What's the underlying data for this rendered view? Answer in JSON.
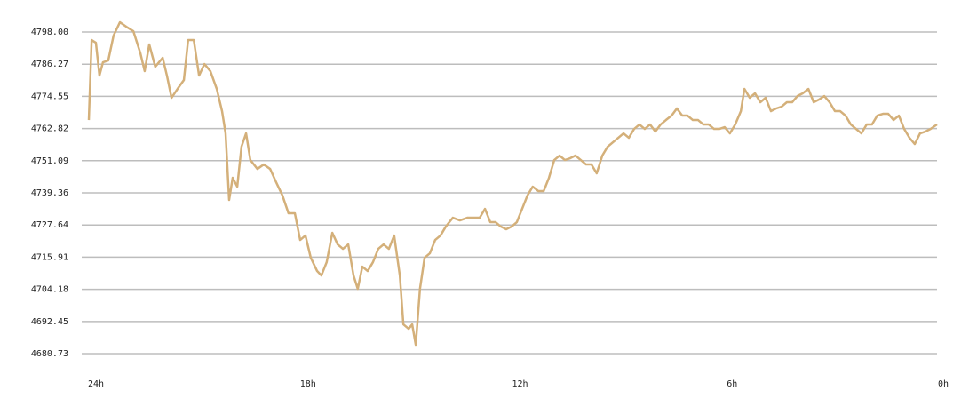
{
  "chart_data": {
    "type": "line",
    "x": [
      24,
      23.92,
      23.8,
      23.7,
      23.6,
      23.45,
      23.3,
      23.12,
      22.94,
      22.74,
      22.54,
      22.42,
      22.29,
      22.12,
      21.91,
      21.79,
      21.66,
      21.49,
      21.31,
      21.19,
      21.03,
      20.88,
      20.73,
      20.56,
      20.38,
      20.23,
      20.13,
      20.03,
      19.93,
      19.8,
      19.68,
      19.55,
      19.43,
      19.23,
      19.05,
      18.87,
      18.7,
      18.52,
      18.35,
      18.17,
      18.02,
      17.87,
      17.72,
      17.54,
      17.42,
      17.27,
      17.11,
      16.96,
      16.81,
      16.66,
      16.51,
      16.39,
      16.26,
      16.11,
      15.96,
      15.81,
      15.66,
      15.51,
      15.36,
      15.2,
      15.1,
      14.95,
      14.85,
      14.75,
      14.63,
      14.5,
      14.35,
      14.2,
      14.05,
      13.9,
      13.7,
      13.5,
      13.29,
      13.09,
      12.94,
      12.79,
      12.64,
      12.49,
      12.34,
      12.19,
      12.04,
      11.89,
      11.74,
      11.59,
      11.44,
      11.28,
      11.13,
      10.98,
      10.83,
      10.68,
      10.53,
      10.38,
      10.23,
      10.08,
      9.93,
      9.78,
      9.63,
      9.47,
      9.32,
      9.17,
      9.02,
      8.87,
      8.72,
      8.57,
      8.42,
      8.27,
      8.12,
      7.97,
      7.82,
      7.67,
      7.51,
      7.36,
      7.21,
      7.06,
      6.91,
      6.76,
      6.61,
      6.46,
      6.31,
      6.16,
      6.01,
      5.86,
      5.71,
      5.55,
      5.45,
      5.3,
      5.15,
      5,
      4.85,
      4.7,
      4.55,
      4.4,
      4.25,
      4.1,
      3.95,
      3.8,
      3.64,
      3.49,
      3.34,
      3.19,
      3.04,
      2.89,
      2.74,
      2.59,
      2.44,
      2.29,
      2.14,
      1.99,
      1.84,
      1.69,
      1.53,
      1.38,
      1.23,
      1.08,
      0.93,
      0.78,
      0.63,
      0.48,
      0.33,
      0.18,
      0
    ],
    "series": [
      {
        "color": "#d4b07a",
        "values": [
          4765.92,
          4795.08,
          4794.11,
          4782.12,
          4786.98,
          4787.63,
          4796.7,
          4801.56,
          4799.94,
          4798.32,
          4790.22,
          4783.74,
          4793.46,
          4785.36,
          4788.6,
          4782.12,
          4774.02,
          4777.26,
          4780.5,
          4795.08,
          4795.08,
          4782.12,
          4786.34,
          4783.74,
          4777.26,
          4769.16,
          4761.06,
          4736.76,
          4744.86,
          4741.62,
          4756.2,
          4761.06,
          4751.34,
          4748.1,
          4749.72,
          4748.1,
          4743.24,
          4738.38,
          4731.9,
          4731.9,
          4722.18,
          4723.8,
          4715.7,
          4710.84,
          4709.22,
          4714.08,
          4724.78,
          4720.56,
          4718.94,
          4720.56,
          4709.22,
          4704.36,
          4712.46,
          4710.84,
          4714.08,
          4718.94,
          4720.56,
          4718.94,
          4723.8,
          4709.22,
          4691.4,
          4689.78,
          4691.4,
          4683.95,
          4704.36,
          4715.7,
          4717.32,
          4722.18,
          4723.8,
          4727.04,
          4730.28,
          4729.31,
          4730.28,
          4730.28,
          4730.28,
          4733.52,
          4728.66,
          4728.66,
          4727.04,
          4726.07,
          4727.04,
          4728.66,
          4733.52,
          4738.38,
          4741.62,
          4740,
          4740,
          4744.86,
          4751.34,
          4752.96,
          4751.34,
          4751.99,
          4752.96,
          4751.34,
          4749.72,
          4749.72,
          4746.48,
          4752.96,
          4756.2,
          4757.82,
          4759.44,
          4761.06,
          4759.44,
          4762.68,
          4764.3,
          4762.68,
          4764.3,
          4761.71,
          4764.3,
          4765.92,
          4767.54,
          4770.14,
          4767.54,
          4767.54,
          4765.92,
          4765.92,
          4764.3,
          4764.3,
          4762.68,
          4762.68,
          4763.33,
          4761.06,
          4764.3,
          4769.16,
          4777.26,
          4774.02,
          4775.64,
          4772.4,
          4774.02,
          4769.16,
          4770.14,
          4770.78,
          4772.4,
          4772.4,
          4774.67,
          4775.64,
          4777.26,
          4772.4,
          4773.38,
          4774.67,
          4772.4,
          4769.16,
          4769.16,
          4767.54,
          4764.3,
          4762.68,
          4761.06,
          4764.3,
          4764.3,
          4767.54,
          4768.19,
          4768.19,
          4765.92,
          4767.54,
          4762.68,
          4759.44,
          4757.18,
          4761.06,
          4761.71,
          4762.68,
          4764.3
        ]
      }
    ],
    "xlim": [
      24,
      0
    ],
    "xticks": [
      {
        "value": 24,
        "label": "24h"
      },
      {
        "value": 18,
        "label": "18h"
      },
      {
        "value": 12,
        "label": "12h"
      },
      {
        "value": 6,
        "label": "6h"
      },
      {
        "value": 0,
        "label": "0h"
      }
    ],
    "ylim": [
      4680.73,
      4798
    ],
    "yticks": [
      {
        "value": 4798,
        "label": "4798.00"
      },
      4786.27,
      4774.55,
      4762.82,
      4751.09,
      4739.36,
      4727.64,
      4715.91,
      4704.18,
      4692.45,
      4680.73
    ],
    "grid": true
  }
}
